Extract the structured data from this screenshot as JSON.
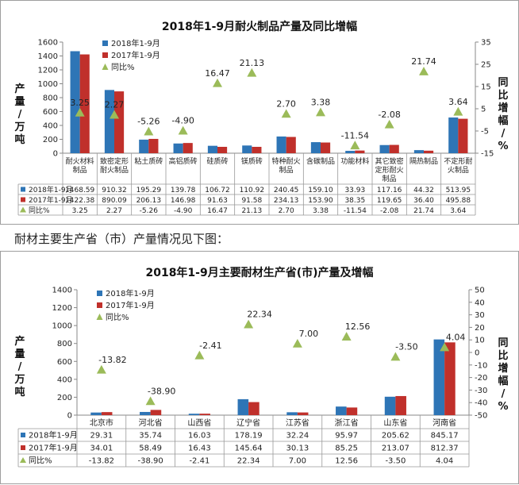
{
  "intro_text": "耐材主要生产省（市）产量情况见下图：",
  "chart_data": [
    {
      "type": "bar",
      "title": "2018年1-9月耐火制品产量及同比增幅",
      "ylabel": "产量/万吨",
      "y2label": "同比增幅/%",
      "ylim": [
        0,
        1600
      ],
      "y_ticks": [
        0,
        200,
        400,
        600,
        800,
        1000,
        1200,
        1400,
        1600
      ],
      "y2lim": [
        -15,
        35
      ],
      "y2_ticks": [
        -15,
        -5,
        5,
        15,
        25,
        35
      ],
      "legend_position": "top-left",
      "grid": false,
      "categories": [
        "耐火材料制品",
        "致密定形耐火制品",
        "粘土质砖",
        "高铝质砖",
        "硅质砖",
        "镁质砖",
        "特种耐火制品",
        "含碳制品",
        "功能材料",
        "其它致密定形耐火制品",
        "隔热制品",
        "不定形耐火制品"
      ],
      "series": [
        {
          "name": "2018年1-9月",
          "type": "bar",
          "axis": "left",
          "color": "#2e75b6",
          "values": [
            1468.59,
            910.32,
            195.29,
            139.78,
            106.72,
            110.92,
            240.45,
            159.1,
            33.93,
            117.16,
            44.32,
            513.95
          ]
        },
        {
          "name": "2017年1-9月",
          "type": "bar",
          "axis": "left",
          "color": "#c0302b",
          "values": [
            1422.38,
            890.09,
            206.13,
            146.98,
            91.63,
            91.58,
            234.13,
            153.9,
            38.35,
            119.65,
            36.4,
            495.88
          ]
        },
        {
          "name": "同比%",
          "type": "marker",
          "axis": "right",
          "color": "#9bbb59",
          "values": [
            3.25,
            2.27,
            -5.26,
            -4.9,
            16.47,
            21.13,
            2.7,
            3.38,
            -11.54,
            -2.08,
            21.74,
            3.64
          ]
        }
      ],
      "table_row_labels": [
        "2018年1-9月",
        "2017年1-9月",
        "同比%"
      ],
      "table_values": [
        [
          "1468.59",
          "910.32",
          "195.29",
          "139.78",
          "106.72",
          "110.92",
          "240.45",
          "159.10",
          "33.93",
          "117.16",
          "44.32",
          "513.95"
        ],
        [
          "1422.38",
          "890.09",
          "206.13",
          "146.98",
          "91.63",
          "91.58",
          "234.13",
          "153.90",
          "38.35",
          "119.65",
          "36.40",
          "495.88"
        ],
        [
          "3.25",
          "2.27",
          "-5.26",
          "-4.90",
          "16.47",
          "21.13",
          "2.70",
          "3.38",
          "-11.54",
          "-2.08",
          "21.74",
          "3.64"
        ]
      ],
      "point_labels": [
        "3.25",
        "2.27",
        "-5.26",
        "-4.90",
        "16.47",
        "21.13",
        "2.70",
        "3.38",
        "-11.54",
        "-2.08",
        "21.74",
        "3.64"
      ]
    },
    {
      "type": "bar",
      "title": "2018年1-9月主要耐材生产省(市)产量及增幅",
      "ylabel": "产量/万吨",
      "y2label": "同比增幅/%",
      "ylim": [
        0,
        1400
      ],
      "y_ticks": [
        0,
        200,
        400,
        600,
        800,
        1000,
        1200,
        1400
      ],
      "y2lim": [
        -50,
        50
      ],
      "y2_ticks": [
        -50,
        -40,
        -30,
        -20,
        -10,
        0,
        10,
        20,
        30,
        40,
        50
      ],
      "legend_position": "top-left",
      "grid": false,
      "categories": [
        "北京市",
        "河北省",
        "山西省",
        "辽宁省",
        "江苏省",
        "浙江省",
        "山东省",
        "河南省"
      ],
      "series": [
        {
          "name": "2018年1-9月",
          "type": "bar",
          "axis": "left",
          "color": "#2e75b6",
          "values": [
            29.31,
            35.74,
            16.03,
            178.19,
            32.24,
            95.97,
            205.62,
            845.17
          ]
        },
        {
          "name": "2017年1-9月",
          "type": "bar",
          "axis": "left",
          "color": "#c0302b",
          "values": [
            34.01,
            58.49,
            16.43,
            145.64,
            30.13,
            85.25,
            213.07,
            812.37
          ]
        },
        {
          "name": "同比%",
          "type": "marker",
          "axis": "right",
          "color": "#9bbb59",
          "values": [
            -13.82,
            -38.9,
            -2.41,
            22.34,
            7.0,
            12.56,
            -3.5,
            4.04
          ]
        }
      ],
      "table_row_labels": [
        "2018年1-9月",
        "2017年1-9月",
        "同比%"
      ],
      "table_values": [
        [
          "29.31",
          "35.74",
          "16.03",
          "178.19",
          "32.24",
          "95.97",
          "205.62",
          "845.17"
        ],
        [
          "34.01",
          "58.49",
          "16.43",
          "145.64",
          "30.13",
          "85.25",
          "213.07",
          "812.37"
        ],
        [
          "-13.82",
          "-38.90",
          "-2.41",
          "22.34",
          "7.00",
          "12.56",
          "-3.50",
          "4.04"
        ]
      ],
      "point_labels": [
        "-13.82",
        "-38.90",
        "-2.41",
        "22.34",
        "7.00",
        "12.56",
        "-3.50",
        "4.04"
      ]
    }
  ]
}
